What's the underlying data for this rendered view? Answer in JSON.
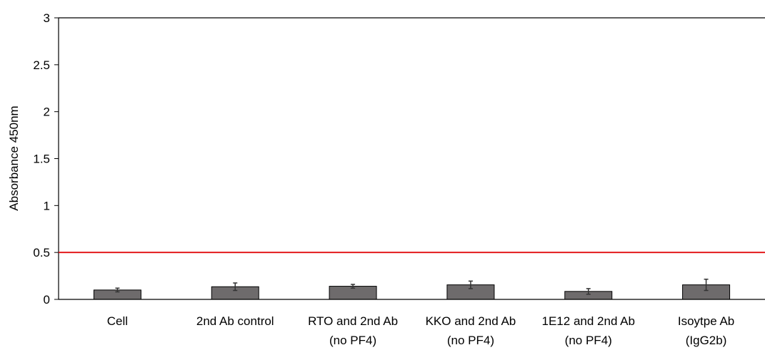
{
  "chart_data": {
    "type": "bar",
    "title": "",
    "xlabel": "",
    "ylabel": "Absorbance 450nm",
    "ylim": [
      0,
      3
    ],
    "yticks": [
      "0",
      "0.5",
      "1",
      "1.5",
      "2",
      "2.5",
      "3"
    ],
    "categories": [
      [
        "Cell"
      ],
      [
        "2nd Ab control"
      ],
      [
        "RTO and 2nd Ab",
        "(no PF4)"
      ],
      [
        "KKO and 2nd Ab",
        "(no PF4)"
      ],
      [
        "1E12 and 2nd Ab",
        "(no PF4)"
      ],
      [
        "Isoytpe Ab",
        "(IgG2b)"
      ]
    ],
    "values": [
      0.1,
      0.135,
      0.14,
      0.155,
      0.085,
      0.155
    ],
    "errors": [
      0.02,
      0.04,
      0.02,
      0.04,
      0.03,
      0.06
    ],
    "threshold": 0.5,
    "grid": false,
    "legend": "none",
    "colors": {
      "bar_fill": "#6e6b6c",
      "bar_stroke": "#000000",
      "error_bar": "#333333",
      "threshold_line": "#e31a1c",
      "axis": "#000000"
    }
  }
}
